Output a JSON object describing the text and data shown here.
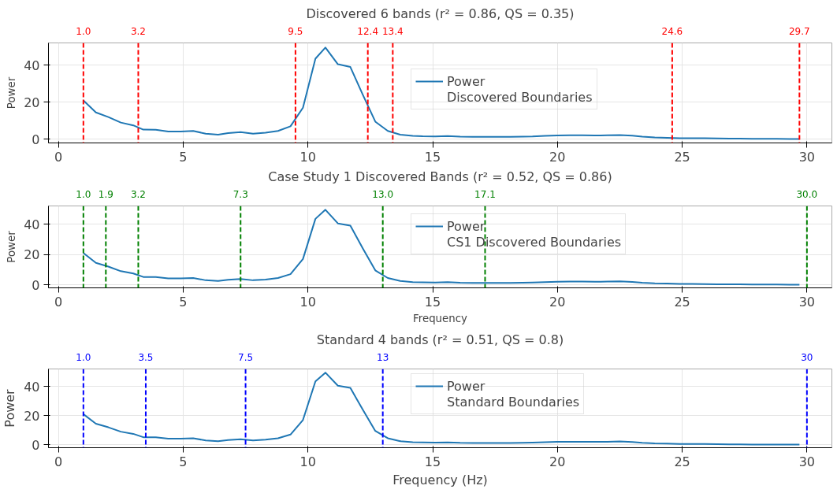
{
  "chart_data": [
    {
      "type": "line",
      "title": "Discovered 6 bands (r² = 0.86, QS = 0.35)",
      "ylabel": "Power",
      "x": [
        1.0,
        1.5,
        2.0,
        2.5,
        3.0,
        3.4,
        3.9,
        4.4,
        4.9,
        5.4,
        5.9,
        6.4,
        6.8,
        7.3,
        7.8,
        8.3,
        8.8,
        9.3,
        9.8,
        10.3,
        10.7,
        11.2,
        11.7,
        12.2,
        12.7,
        13.2,
        13.7,
        14.2,
        14.6,
        15.1,
        15.6,
        16.1,
        16.6,
        17.1,
        17.6,
        18.1,
        18.6,
        19.0,
        19.5,
        20.0,
        20.5,
        21.0,
        21.5,
        22.0,
        22.5,
        23.0,
        23.4,
        23.9,
        24.4,
        24.9,
        25.4,
        25.9,
        26.4,
        26.9,
        27.3,
        27.8,
        28.3,
        28.8,
        29.3,
        29.7
      ],
      "series": [
        {
          "name": "Power",
          "color": "#1f77b4",
          "values": [
            21,
            14.5,
            12,
            9,
            7.5,
            5.2,
            5.1,
            4.2,
            4.2,
            4.5,
            3,
            2.5,
            3.3,
            3.8,
            3,
            3.5,
            4.5,
            7,
            17,
            43.5,
            49.5,
            40.5,
            39,
            24,
            9.5,
            4.5,
            2.5,
            1.8,
            1.6,
            1.5,
            1.7,
            1.4,
            1.3,
            1.3,
            1.3,
            1.3,
            1.4,
            1.5,
            1.8,
            2.0,
            2.1,
            2.1,
            2.0,
            2.1,
            2.3,
            1.9,
            1.4,
            1.0,
            0.8,
            0.6,
            0.6,
            0.5,
            0.4,
            0.3,
            0.3,
            0.2,
            0.2,
            0.2,
            0.1,
            0.1
          ]
        }
      ],
      "xlim": [
        -0.4,
        31
      ],
      "xticks": [
        0,
        5,
        10,
        15,
        20,
        25,
        30
      ],
      "ylim": [
        -2,
        52
      ],
      "yticks": [
        0,
        20,
        40
      ],
      "annotations": [
        "Discovered Boundaries"
      ],
      "ref_lines": [
        {
          "axis": "x",
          "value": 1.0,
          "label": "1.0",
          "color": "#ff0000",
          "line_style": "dashed"
        },
        {
          "axis": "x",
          "value": 3.2,
          "label": "3.2",
          "color": "#ff0000",
          "line_style": "dashed"
        },
        {
          "axis": "x",
          "value": 9.5,
          "label": "9.5",
          "color": "#ff0000",
          "line_style": "dashed"
        },
        {
          "axis": "x",
          "value": 12.4,
          "label": "12.4",
          "color": "#ff0000",
          "line_style": "dashed"
        },
        {
          "axis": "x",
          "value": 13.4,
          "label": "13.4",
          "color": "#ff0000",
          "line_style": "dashed"
        },
        {
          "axis": "x",
          "value": 24.6,
          "label": "24.6",
          "color": "#ff0000",
          "line_style": "dashed"
        },
        {
          "axis": "x",
          "value": 29.7,
          "label": "29.7",
          "color": "#ff0000",
          "line_style": "dashed"
        }
      ],
      "grid": true,
      "legend": "top",
      "marker": "none",
      "line_style": "solid"
    },
    {
      "type": "line",
      "title": "Case Study 1 Discovered Bands (r² = 0.52, QS = 0.86)",
      "ylabel": "Power",
      "xlabel": "Frequency",
      "x": [
        1.0,
        1.5,
        2.0,
        2.5,
        3.0,
        3.4,
        3.9,
        4.4,
        4.9,
        5.4,
        5.9,
        6.4,
        6.8,
        7.3,
        7.8,
        8.3,
        8.8,
        9.3,
        9.8,
        10.3,
        10.7,
        11.2,
        11.7,
        12.2,
        12.7,
        13.2,
        13.7,
        14.2,
        14.6,
        15.1,
        15.6,
        16.1,
        16.6,
        17.1,
        17.6,
        18.1,
        18.6,
        19.0,
        19.5,
        20.0,
        20.5,
        21.0,
        21.5,
        22.0,
        22.5,
        23.0,
        23.4,
        23.9,
        24.4,
        24.9,
        25.4,
        25.9,
        26.4,
        26.9,
        27.3,
        27.8,
        28.3,
        28.8,
        29.3,
        29.7
      ],
      "series": [
        {
          "name": "Power",
          "color": "#1f77b4",
          "values": [
            21,
            14.5,
            12,
            9,
            7.5,
            5.2,
            5.1,
            4.2,
            4.2,
            4.5,
            3,
            2.5,
            3.3,
            3.8,
            3,
            3.5,
            4.5,
            7,
            17,
            43.5,
            49.5,
            40.5,
            39,
            24,
            9.5,
            4.5,
            2.5,
            1.8,
            1.6,
            1.5,
            1.7,
            1.4,
            1.3,
            1.3,
            1.3,
            1.3,
            1.4,
            1.5,
            1.8,
            2.0,
            2.1,
            2.1,
            2.0,
            2.1,
            2.3,
            1.9,
            1.4,
            1.0,
            0.8,
            0.6,
            0.6,
            0.5,
            0.4,
            0.3,
            0.3,
            0.2,
            0.2,
            0.2,
            0.1,
            0.1
          ]
        }
      ],
      "xlim": [
        -0.4,
        31
      ],
      "xticks": [
        0,
        5,
        10,
        15,
        20,
        25,
        30
      ],
      "ylim": [
        -2,
        52
      ],
      "yticks": [
        0,
        20,
        40
      ],
      "annotations": [
        "CS1 Discovered Boundaries"
      ],
      "ref_lines": [
        {
          "axis": "x",
          "value": 1.0,
          "label": "1.0",
          "color": "#008000",
          "line_style": "dashed"
        },
        {
          "axis": "x",
          "value": 1.9,
          "label": "1.9",
          "color": "#008000",
          "line_style": "dashed"
        },
        {
          "axis": "x",
          "value": 3.2,
          "label": "3.2",
          "color": "#008000",
          "line_style": "dashed"
        },
        {
          "axis": "x",
          "value": 7.3,
          "label": "7.3",
          "color": "#008000",
          "line_style": "dashed"
        },
        {
          "axis": "x",
          "value": 13.0,
          "label": "13.0",
          "color": "#008000",
          "line_style": "dashed"
        },
        {
          "axis": "x",
          "value": 17.1,
          "label": "17.1",
          "color": "#008000",
          "line_style": "dashed"
        },
        {
          "axis": "x",
          "value": 30.0,
          "label": "30.0",
          "color": "#008000",
          "line_style": "dashed"
        }
      ],
      "grid": true,
      "legend": "top",
      "marker": "none",
      "line_style": "solid"
    },
    {
      "type": "line",
      "title": "Standard 4 bands (r² = 0.51, QS = 0.8)",
      "ylabel": "Power",
      "xlabel": "Frequency (Hz)",
      "x": [
        1.0,
        1.5,
        2.0,
        2.5,
        3.0,
        3.4,
        3.9,
        4.4,
        4.9,
        5.4,
        5.9,
        6.4,
        6.8,
        7.3,
        7.8,
        8.3,
        8.8,
        9.3,
        9.8,
        10.3,
        10.7,
        11.2,
        11.7,
        12.2,
        12.7,
        13.2,
        13.7,
        14.2,
        14.6,
        15.1,
        15.6,
        16.1,
        16.6,
        17.1,
        17.6,
        18.1,
        18.6,
        19.0,
        19.5,
        20.0,
        20.5,
        21.0,
        21.5,
        22.0,
        22.5,
        23.0,
        23.4,
        23.9,
        24.4,
        24.9,
        25.4,
        25.9,
        26.4,
        26.9,
        27.3,
        27.8,
        28.3,
        28.8,
        29.3,
        29.7
      ],
      "series": [
        {
          "name": "Power",
          "color": "#1f77b4",
          "values": [
            21,
            14.5,
            12,
            9,
            7.5,
            5.2,
            5.1,
            4.2,
            4.2,
            4.5,
            3,
            2.5,
            3.3,
            3.8,
            3,
            3.5,
            4.5,
            7,
            17,
            43.5,
            49.5,
            40.5,
            39,
            24,
            9.5,
            4.5,
            2.5,
            1.8,
            1.6,
            1.5,
            1.7,
            1.4,
            1.3,
            1.3,
            1.3,
            1.3,
            1.4,
            1.5,
            1.8,
            2.0,
            2.1,
            2.1,
            2.0,
            2.1,
            2.3,
            1.9,
            1.4,
            1.0,
            0.8,
            0.6,
            0.6,
            0.5,
            0.4,
            0.3,
            0.3,
            0.2,
            0.2,
            0.2,
            0.1,
            0.1
          ]
        }
      ],
      "xlim": [
        -0.4,
        31
      ],
      "xticks": [
        0,
        5,
        10,
        15,
        20,
        25,
        30
      ],
      "ylim": [
        -2,
        52
      ],
      "yticks": [
        0,
        20,
        40
      ],
      "annotations": [
        "Standard Boundaries"
      ],
      "ref_lines": [
        {
          "axis": "x",
          "value": 1.0,
          "label": "1.0",
          "color": "#0000ff",
          "line_style": "dashed"
        },
        {
          "axis": "x",
          "value": 3.5,
          "label": "3.5",
          "color": "#0000ff",
          "line_style": "dashed"
        },
        {
          "axis": "x",
          "value": 7.5,
          "label": "7.5",
          "color": "#0000ff",
          "line_style": "dashed"
        },
        {
          "axis": "x",
          "value": 13,
          "label": "13",
          "color": "#0000ff",
          "line_style": "dashed"
        },
        {
          "axis": "x",
          "value": 30,
          "label": "30",
          "color": "#0000ff",
          "line_style": "dashed"
        }
      ],
      "grid": true,
      "legend": "top",
      "marker": "none",
      "line_style": "solid"
    }
  ]
}
